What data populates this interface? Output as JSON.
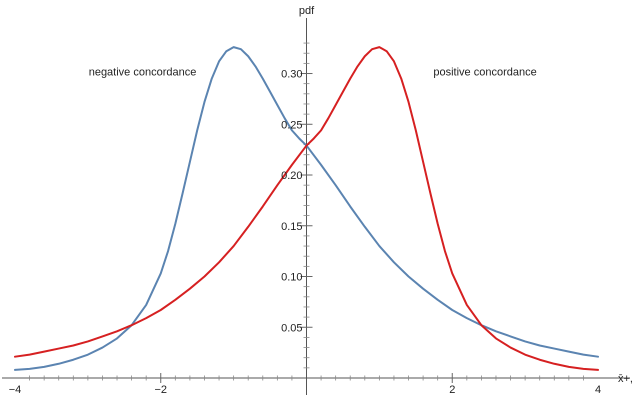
{
  "chart_data": {
    "type": "line",
    "xlabel": "x̄+,",
    "ylabel": "pdf",
    "xlim": [
      -4,
      4
    ],
    "ylim": [
      0,
      0.335
    ],
    "x_ticks": [
      {
        "value": -4,
        "label": "−4"
      },
      {
        "value": -2,
        "label": "−2"
      },
      {
        "value": 2,
        "label": "2"
      },
      {
        "value": 4,
        "label": "4"
      }
    ],
    "y_ticks": [
      {
        "value": 0.05,
        "label": "0.05"
      },
      {
        "value": 0.1,
        "label": "0.10"
      },
      {
        "value": 0.15,
        "label": "0.15"
      },
      {
        "value": 0.2,
        "label": "0.20"
      },
      {
        "value": 0.25,
        "label": "0.25"
      },
      {
        "value": 0.3,
        "label": "0.30"
      }
    ],
    "grid": false,
    "series": [
      {
        "color": "#5b84b1",
        "x": [
          -4.0,
          -3.8,
          -3.6,
          -3.4,
          -3.2,
          -3.0,
          -2.8,
          -2.6,
          -2.4,
          -2.2,
          -2.0,
          -1.9,
          -1.8,
          -1.7,
          -1.6,
          -1.5,
          -1.4,
          -1.3,
          -1.2,
          -1.1,
          -1.0,
          -0.9,
          -0.8,
          -0.7,
          -0.6,
          -0.5,
          -0.4,
          -0.3,
          -0.2,
          -0.1,
          0.0,
          0.2,
          0.4,
          0.6,
          0.8,
          1.0,
          1.2,
          1.4,
          1.6,
          1.8,
          2.0,
          2.2,
          2.4,
          2.6,
          2.8,
          3.0,
          3.2,
          3.4,
          3.6,
          3.8,
          4.0
        ],
        "y": [
          0.008,
          0.009,
          0.011,
          0.014,
          0.018,
          0.023,
          0.03,
          0.039,
          0.052,
          0.072,
          0.103,
          0.125,
          0.152,
          0.182,
          0.213,
          0.244,
          0.272,
          0.295,
          0.312,
          0.322,
          0.326,
          0.324,
          0.317,
          0.307,
          0.295,
          0.282,
          0.269,
          0.256,
          0.244,
          0.236,
          0.229,
          0.21,
          0.19,
          0.169,
          0.149,
          0.13,
          0.114,
          0.1,
          0.088,
          0.077,
          0.067,
          0.059,
          0.052,
          0.046,
          0.041,
          0.036,
          0.032,
          0.029,
          0.026,
          0.023,
          0.021
        ]
      },
      {
        "color": "#d62021",
        "x": [
          -4.0,
          -3.8,
          -3.6,
          -3.4,
          -3.2,
          -3.0,
          -2.8,
          -2.6,
          -2.4,
          -2.2,
          -2.0,
          -1.8,
          -1.6,
          -1.4,
          -1.2,
          -1.0,
          -0.8,
          -0.6,
          -0.4,
          -0.2,
          0.0,
          0.1,
          0.2,
          0.3,
          0.4,
          0.5,
          0.6,
          0.7,
          0.8,
          0.9,
          1.0,
          1.1,
          1.2,
          1.3,
          1.4,
          1.5,
          1.6,
          1.7,
          1.8,
          1.9,
          2.0,
          2.2,
          2.4,
          2.6,
          2.8,
          3.0,
          3.2,
          3.4,
          3.6,
          3.8,
          4.0
        ],
        "y": [
          0.021,
          0.023,
          0.026,
          0.029,
          0.032,
          0.036,
          0.041,
          0.046,
          0.052,
          0.059,
          0.067,
          0.077,
          0.088,
          0.1,
          0.114,
          0.13,
          0.149,
          0.169,
          0.19,
          0.21,
          0.229,
          0.236,
          0.244,
          0.256,
          0.269,
          0.282,
          0.295,
          0.307,
          0.317,
          0.324,
          0.326,
          0.322,
          0.312,
          0.295,
          0.272,
          0.244,
          0.213,
          0.182,
          0.152,
          0.125,
          0.103,
          0.072,
          0.052,
          0.039,
          0.03,
          0.023,
          0.018,
          0.014,
          0.011,
          0.009,
          0.008
        ]
      }
    ],
    "annotations": [
      {
        "text": "negative concordance",
        "x": -2.25,
        "y": 0.298,
        "anchor": "middle"
      },
      {
        "text": "positive concordance",
        "x": 2.45,
        "y": 0.298,
        "anchor": "middle"
      }
    ]
  }
}
